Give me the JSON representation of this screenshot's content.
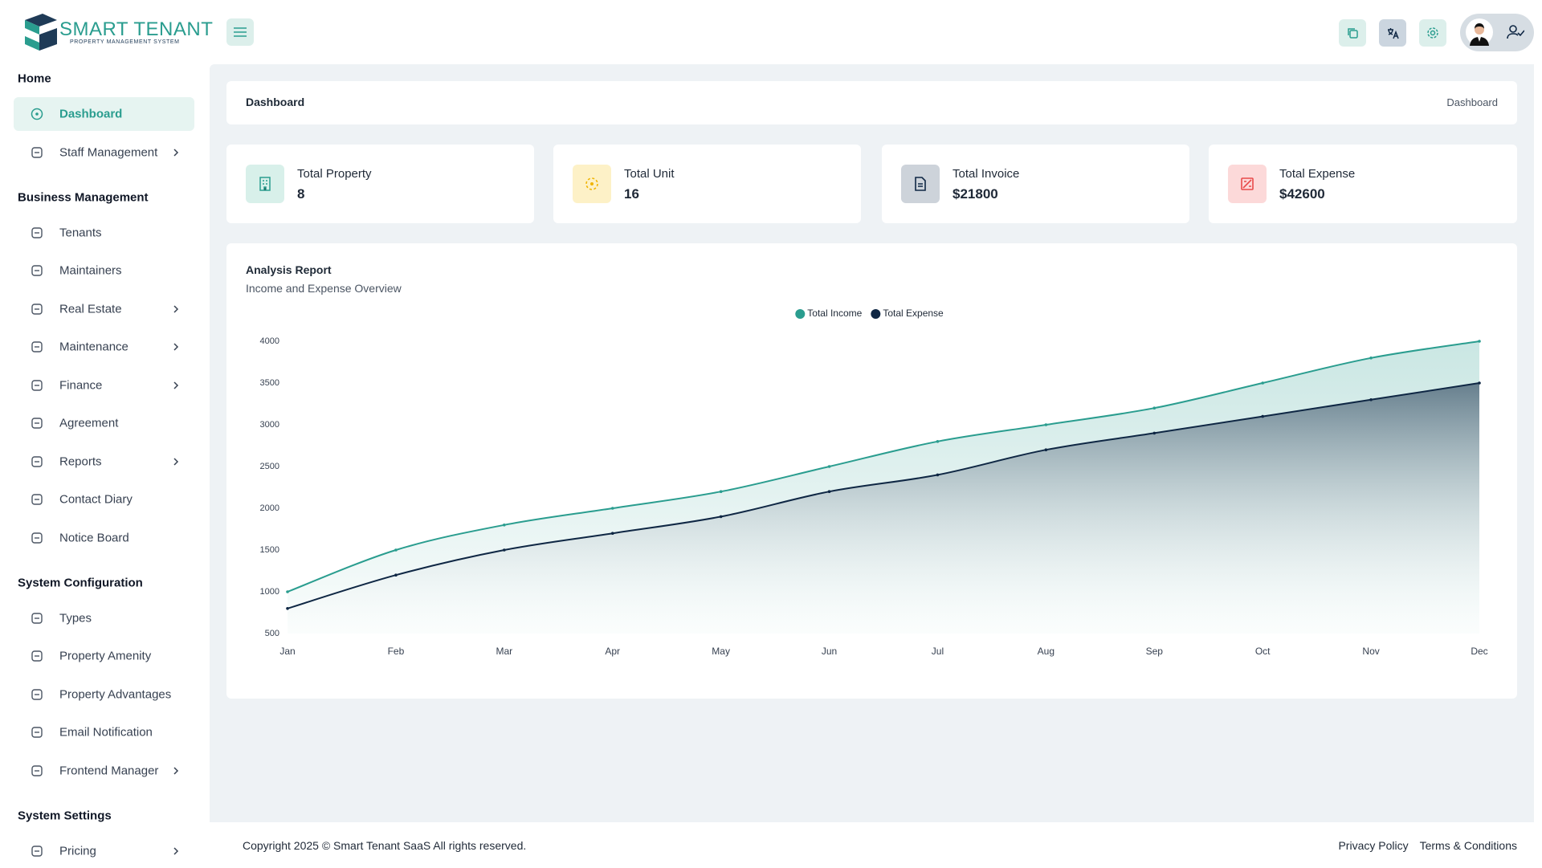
{
  "header": {
    "logo_title": "SMART TENANT",
    "logo_subtitle": "PROPERTY MANAGEMENT SYSTEM"
  },
  "sidebar": {
    "sections": [
      {
        "title": "Home",
        "items": [
          {
            "label": "Dashboard",
            "active": true
          },
          {
            "label": "Staff Management",
            "submenu": true
          }
        ]
      },
      {
        "title": "Business Management",
        "items": [
          {
            "label": "Tenants"
          },
          {
            "label": "Maintainers"
          },
          {
            "label": "Real Estate",
            "submenu": true
          },
          {
            "label": "Maintenance",
            "submenu": true
          },
          {
            "label": "Finance",
            "submenu": true
          },
          {
            "label": "Agreement"
          },
          {
            "label": "Reports",
            "submenu": true
          },
          {
            "label": "Contact Diary"
          },
          {
            "label": "Notice Board"
          }
        ]
      },
      {
        "title": "System Configuration",
        "items": [
          {
            "label": "Types"
          },
          {
            "label": "Property Amenity"
          },
          {
            "label": "Property Advantages"
          },
          {
            "label": "Email Notification"
          },
          {
            "label": "Frontend Manager",
            "submenu": true
          }
        ]
      },
      {
        "title": "System Settings",
        "items": [
          {
            "label": "Pricing",
            "submenu": true
          }
        ]
      }
    ]
  },
  "breadcrumb": {
    "title": "Dashboard",
    "current": "Dashboard"
  },
  "stats": [
    {
      "label": "Total Property",
      "value": "8"
    },
    {
      "label": "Total Unit",
      "value": "16"
    },
    {
      "label": "Total Invoice",
      "value": "$21800"
    },
    {
      "label": "Total Expense",
      "value": "$42600"
    }
  ],
  "chart_data": {
    "type": "area",
    "title": "Analysis Report",
    "subtitle": "Income and Expense Overview",
    "categories": [
      "Jan",
      "Feb",
      "Mar",
      "Apr",
      "May",
      "Jun",
      "Jul",
      "Aug",
      "Sep",
      "Oct",
      "Nov",
      "Dec"
    ],
    "series": [
      {
        "name": "Total Income",
        "color": "#2a9d8f",
        "values": [
          1000,
          1500,
          1800,
          2000,
          2200,
          2500,
          2800,
          3000,
          3200,
          3500,
          3800,
          4000
        ]
      },
      {
        "name": "Total Expense",
        "color": "#0f2744",
        "values": [
          800,
          1200,
          1500,
          1700,
          1900,
          2200,
          2400,
          2700,
          2900,
          3100,
          3300,
          3500
        ]
      }
    ],
    "ylim": [
      500,
      4000
    ],
    "yticks": [
      500,
      1000,
      1500,
      2000,
      2500,
      3000,
      3500,
      4000
    ],
    "legend": "top",
    "curve": "smooth"
  },
  "footer": {
    "copyright": "Copyright 2025 © Smart Tenant SaaS All rights reserved.",
    "links": [
      "Privacy Policy",
      "Terms & Conditions"
    ]
  }
}
